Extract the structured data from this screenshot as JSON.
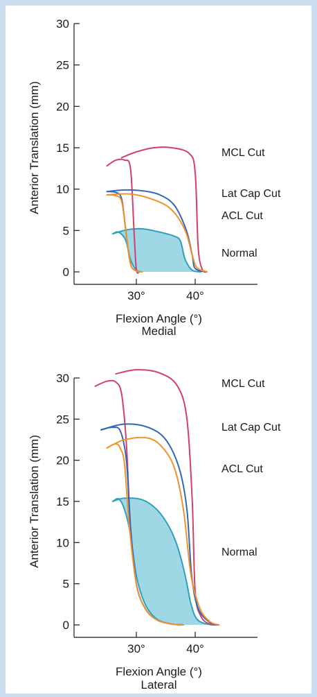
{
  "chart_data": [
    {
      "type": "line",
      "subtitle": "Medial",
      "xlabel": "Flexion Angle (°)",
      "ylabel": "Anterior Translation (mm)",
      "xticks": [
        "30°",
        "40°"
      ],
      "xtick_values": [
        30,
        40
      ],
      "yticks": [
        0,
        5,
        10,
        15,
        20,
        25,
        30
      ],
      "xlim": [
        20,
        50
      ],
      "ylim": [
        0,
        30
      ],
      "grid": false,
      "legend": "inline labels at right",
      "series": [
        {
          "name": "MCL Cut",
          "color": "#d23f6e",
          "loading": [
            [
              25,
              12.8
            ],
            [
              26.5,
              13.5
            ],
            [
              28,
              13.5
            ],
            [
              29,
              12.5
            ],
            [
              29.6,
              5
            ],
            [
              30,
              0.3
            ],
            [
              30.5,
              0
            ]
          ],
          "unloading": [
            [
              27.5,
              13.8
            ],
            [
              30,
              14.5
            ],
            [
              33,
              15
            ],
            [
              36,
              15
            ],
            [
              39,
              14.3
            ],
            [
              40,
              12
            ],
            [
              40.5,
              3
            ],
            [
              41.2,
              0.3
            ],
            [
              42,
              0
            ]
          ]
        },
        {
          "name": "Lat Cap Cut",
          "color": "#3466b4",
          "loading": [
            [
              25,
              9.7
            ],
            [
              26.5,
              9.6
            ],
            [
              27.5,
              8.8
            ],
            [
              28.2,
              5
            ],
            [
              29,
              1
            ],
            [
              30,
              0.1
            ],
            [
              31,
              0
            ]
          ],
          "unloading": [
            [
              25,
              9.7
            ],
            [
              28,
              9.9
            ],
            [
              31,
              9.8
            ],
            [
              34,
              9.3
            ],
            [
              36.5,
              8
            ],
            [
              38.5,
              5
            ],
            [
              39.5,
              2
            ],
            [
              40,
              0.4
            ],
            [
              42,
              0
            ]
          ]
        },
        {
          "name": "ACL Cut",
          "color": "#f0922c",
          "loading": [
            [
              25,
              9.3
            ],
            [
              26.5,
              9.2
            ],
            [
              27.5,
              8.5
            ],
            [
              28.2,
              5
            ],
            [
              29,
              1
            ],
            [
              30,
              0.1
            ],
            [
              31,
              0
            ]
          ],
          "unloading": [
            [
              25,
              9.3
            ],
            [
              29,
              9.4
            ],
            [
              33,
              8.7
            ],
            [
              36,
              7.5
            ],
            [
              38.3,
              5
            ],
            [
              39.5,
              2
            ],
            [
              40.3,
              0.5
            ],
            [
              42,
              0
            ]
          ]
        },
        {
          "name": "Normal",
          "color": "#2aa2bf",
          "shaded": true,
          "loading": [
            [
              26,
              4.6
            ],
            [
              27,
              4.8
            ],
            [
              28.2,
              3.8
            ],
            [
              29,
              1.5
            ],
            [
              30,
              0.2
            ],
            [
              31,
              0
            ]
          ],
          "unloading": [
            [
              26,
              4.6
            ],
            [
              28.5,
              5.1
            ],
            [
              31,
              5.2
            ],
            [
              34,
              4.8
            ],
            [
              36.5,
              4.3
            ],
            [
              37.5,
              3.7
            ],
            [
              38.3,
              1.5
            ],
            [
              39.5,
              0.2
            ],
            [
              41,
              0
            ]
          ]
        }
      ]
    },
    {
      "type": "line",
      "subtitle": "Lateral",
      "xlabel": "Flexion Angle (°)",
      "ylabel": "Anterior Translation (mm)",
      "xticks": [
        "30°",
        "40°"
      ],
      "xtick_values": [
        30,
        40
      ],
      "yticks": [
        0,
        5,
        10,
        15,
        20,
        25,
        30
      ],
      "xlim": [
        20,
        50
      ],
      "ylim": [
        0,
        30
      ],
      "grid": false,
      "legend": "inline labels at right",
      "series": [
        {
          "name": "MCL Cut",
          "color": "#d23f6e",
          "loading": [
            [
              23,
              29
            ],
            [
              25,
              29.6
            ],
            [
              26.5,
              29.5
            ],
            [
              27.5,
              28
            ],
            [
              28.3,
              22
            ],
            [
              29,
              12
            ],
            [
              30,
              5
            ],
            [
              31.5,
              2
            ],
            [
              33.5,
              0.6
            ],
            [
              36,
              0.1
            ],
            [
              38,
              0
            ]
          ],
          "unloading": [
            [
              26.5,
              30.5
            ],
            [
              30,
              31
            ],
            [
              34,
              30.6
            ],
            [
              37,
              29
            ],
            [
              38.6,
              25
            ],
            [
              39.5,
              15
            ],
            [
              40,
              4
            ],
            [
              41,
              1
            ],
            [
              42.5,
              0.1
            ],
            [
              44,
              0
            ]
          ]
        },
        {
          "name": "Lat Cap Cut",
          "color": "#3466b4",
          "loading": [
            [
              24,
              23.7
            ],
            [
              26,
              24
            ],
            [
              27.3,
              23.5
            ],
            [
              28.3,
              20
            ],
            [
              29,
              12
            ],
            [
              30,
              5
            ],
            [
              31.5,
              2
            ],
            [
              33.5,
              0.6
            ],
            [
              36,
              0.1
            ],
            [
              38,
              0
            ]
          ],
          "unloading": [
            [
              24,
              23.7
            ],
            [
              28,
              24.4
            ],
            [
              32,
              24
            ],
            [
              35,
              22.5
            ],
            [
              37.3,
              19
            ],
            [
              38.6,
              14
            ],
            [
              39.4,
              6
            ],
            [
              40.5,
              2
            ],
            [
              42.5,
              0.3
            ],
            [
              44,
              0
            ]
          ]
        },
        {
          "name": "ACL Cut",
          "color": "#f0922c",
          "loading": [
            [
              25,
              21.5
            ],
            [
              26.5,
              22
            ],
            [
              27.3,
              21.4
            ],
            [
              28,
              19.5
            ],
            [
              28.8,
              12
            ],
            [
              30,
              5
            ],
            [
              31.5,
              2
            ],
            [
              33.5,
              0.6
            ],
            [
              36,
              0.1
            ],
            [
              38,
              0
            ]
          ],
          "unloading": [
            [
              25,
              21.5
            ],
            [
              28,
              22.5
            ],
            [
              32,
              22.7
            ],
            [
              34.5,
              21.5
            ],
            [
              36.5,
              19
            ],
            [
              38,
              14
            ],
            [
              39.3,
              6
            ],
            [
              40.8,
              2
            ],
            [
              42.5,
              0.4
            ],
            [
              44,
              0
            ]
          ]
        },
        {
          "name": "Normal",
          "color": "#2aa2bf",
          "shaded": true,
          "loading": [
            [
              26,
              15
            ],
            [
              27,
              15.3
            ],
            [
              28,
              14
            ],
            [
              29,
              11
            ],
            [
              30,
              6
            ],
            [
              31.5,
              2.5
            ],
            [
              33.5,
              0.7
            ],
            [
              36,
              0.1
            ],
            [
              38,
              0
            ]
          ],
          "unloading": [
            [
              26,
              15
            ],
            [
              28,
              15.4
            ],
            [
              31,
              15.2
            ],
            [
              33.5,
              14
            ],
            [
              35.5,
              12
            ],
            [
              37,
              9.5
            ],
            [
              38.3,
              6
            ],
            [
              39.3,
              2.5
            ],
            [
              40.3,
              0.7
            ],
            [
              42,
              0.1
            ],
            [
              44,
              0
            ]
          ]
        }
      ]
    }
  ]
}
